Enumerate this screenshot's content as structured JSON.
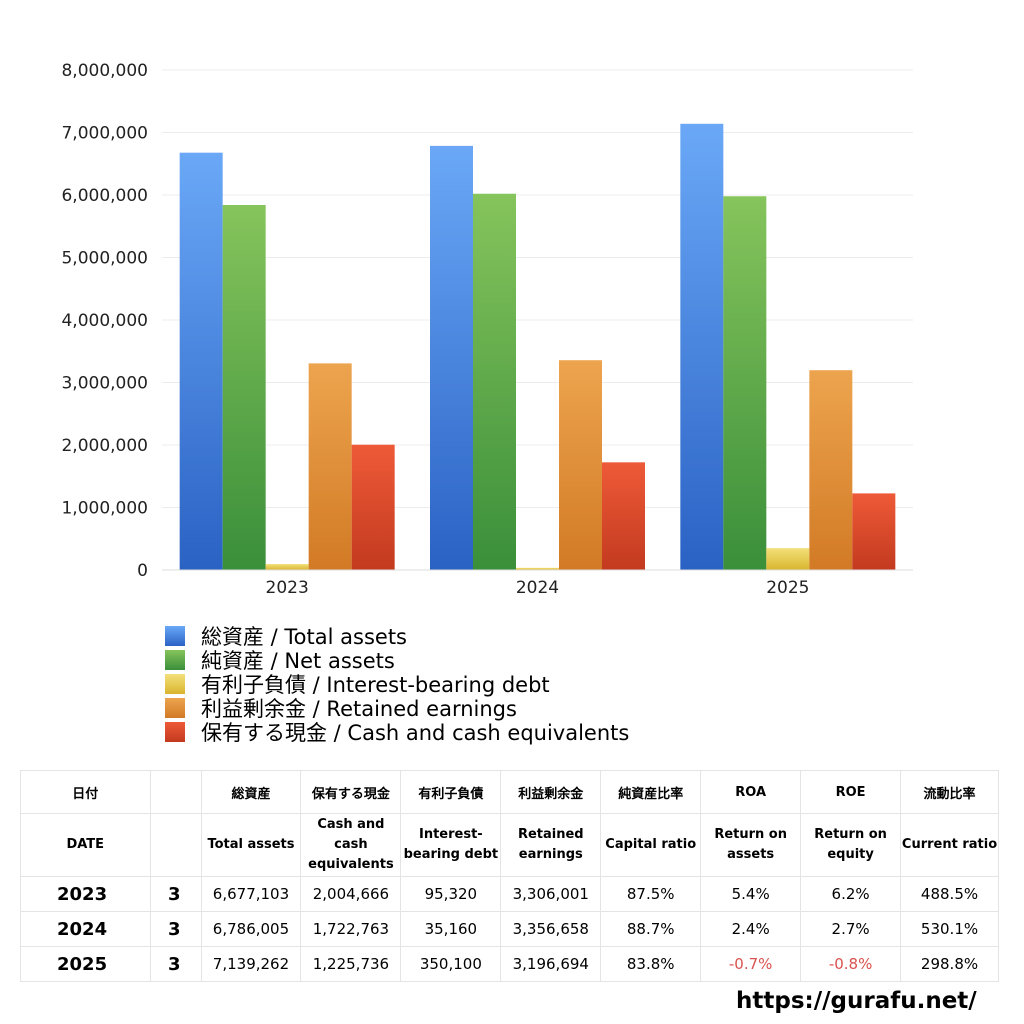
{
  "chart_data": {
    "type": "bar",
    "categories": [
      "2023",
      "2024",
      "2025"
    ],
    "ylim": [
      0,
      8000000
    ],
    "yticks": [
      "0",
      "1,000,000",
      "2,000,000",
      "3,000,000",
      "4,000,000",
      "5,000,000",
      "6,000,000",
      "7,000,000",
      "8,000,000"
    ],
    "ytick_values": [
      0,
      1000000,
      2000000,
      3000000,
      4000000,
      5000000,
      6000000,
      7000000,
      8000000
    ],
    "grid": true,
    "legend_position": "bottom",
    "series": [
      {
        "name": "総資産 / Total assets",
        "color_top": "#6aa8f7",
        "color_bottom": "#2a62c4",
        "values": [
          6677103,
          6786005,
          7139262
        ]
      },
      {
        "name": "純資産 / Net assets",
        "color_top": "#86c45c",
        "color_bottom": "#3a8f3a",
        "values": [
          5840000,
          6020000,
          5980000
        ]
      },
      {
        "name": "有利子負債 / Interest-bearing debt",
        "color_top": "#f3e07a",
        "color_bottom": "#d9b52f",
        "values": [
          95320,
          35160,
          350100
        ]
      },
      {
        "name": "利益剰余金 / Retained earnings",
        "color_top": "#eda44e",
        "color_bottom": "#d27a25",
        "values": [
          3306001,
          3356658,
          3196694
        ]
      },
      {
        "name": "保有する現金 /  Cash and cash equivalents",
        "color_top": "#ee5a38",
        "color_bottom": "#c33a1f",
        "values": [
          2004666,
          1722763,
          1225736
        ]
      }
    ]
  },
  "table": {
    "header_jp": [
      "日付",
      "",
      "総資産",
      "保有する現金",
      "有利子負債",
      "利益剰余金",
      "純資産比率",
      "ROA",
      "ROE",
      "流動比率"
    ],
    "header_en": [
      "DATE",
      "",
      "Total assets",
      "Cash and cash equivalents",
      "Interest-bearing debt",
      "Retained earnings",
      "Capital ratio",
      "Return on assets",
      "Return on equity",
      "Current ratio"
    ],
    "rows": [
      {
        "year": "2023",
        "month": "3",
        "total_assets": "6,677,103",
        "cash": "2,004,666",
        "debt": "95,320",
        "retained": "3,306,001",
        "capital_ratio": "87.5%",
        "roa": "5.4%",
        "roe": "6.2%",
        "current_ratio": "488.5%"
      },
      {
        "year": "2024",
        "month": "3",
        "total_assets": "6,786,005",
        "cash": "1,722,763",
        "debt": "35,160",
        "retained": "3,356,658",
        "capital_ratio": "88.7%",
        "roa": "2.4%",
        "roe": "2.7%",
        "current_ratio": "530.1%"
      },
      {
        "year": "2025",
        "month": "3",
        "total_assets": "7,139,262",
        "cash": "1,225,736",
        "debt": "350,100",
        "retained": "3,196,694",
        "capital_ratio": "83.8%",
        "roa": "-0.7%",
        "roe": "-0.8%",
        "current_ratio": "298.8%"
      }
    ],
    "negative_color": "#d9534f"
  },
  "footer": {
    "url": "https://gurafu.net/"
  }
}
